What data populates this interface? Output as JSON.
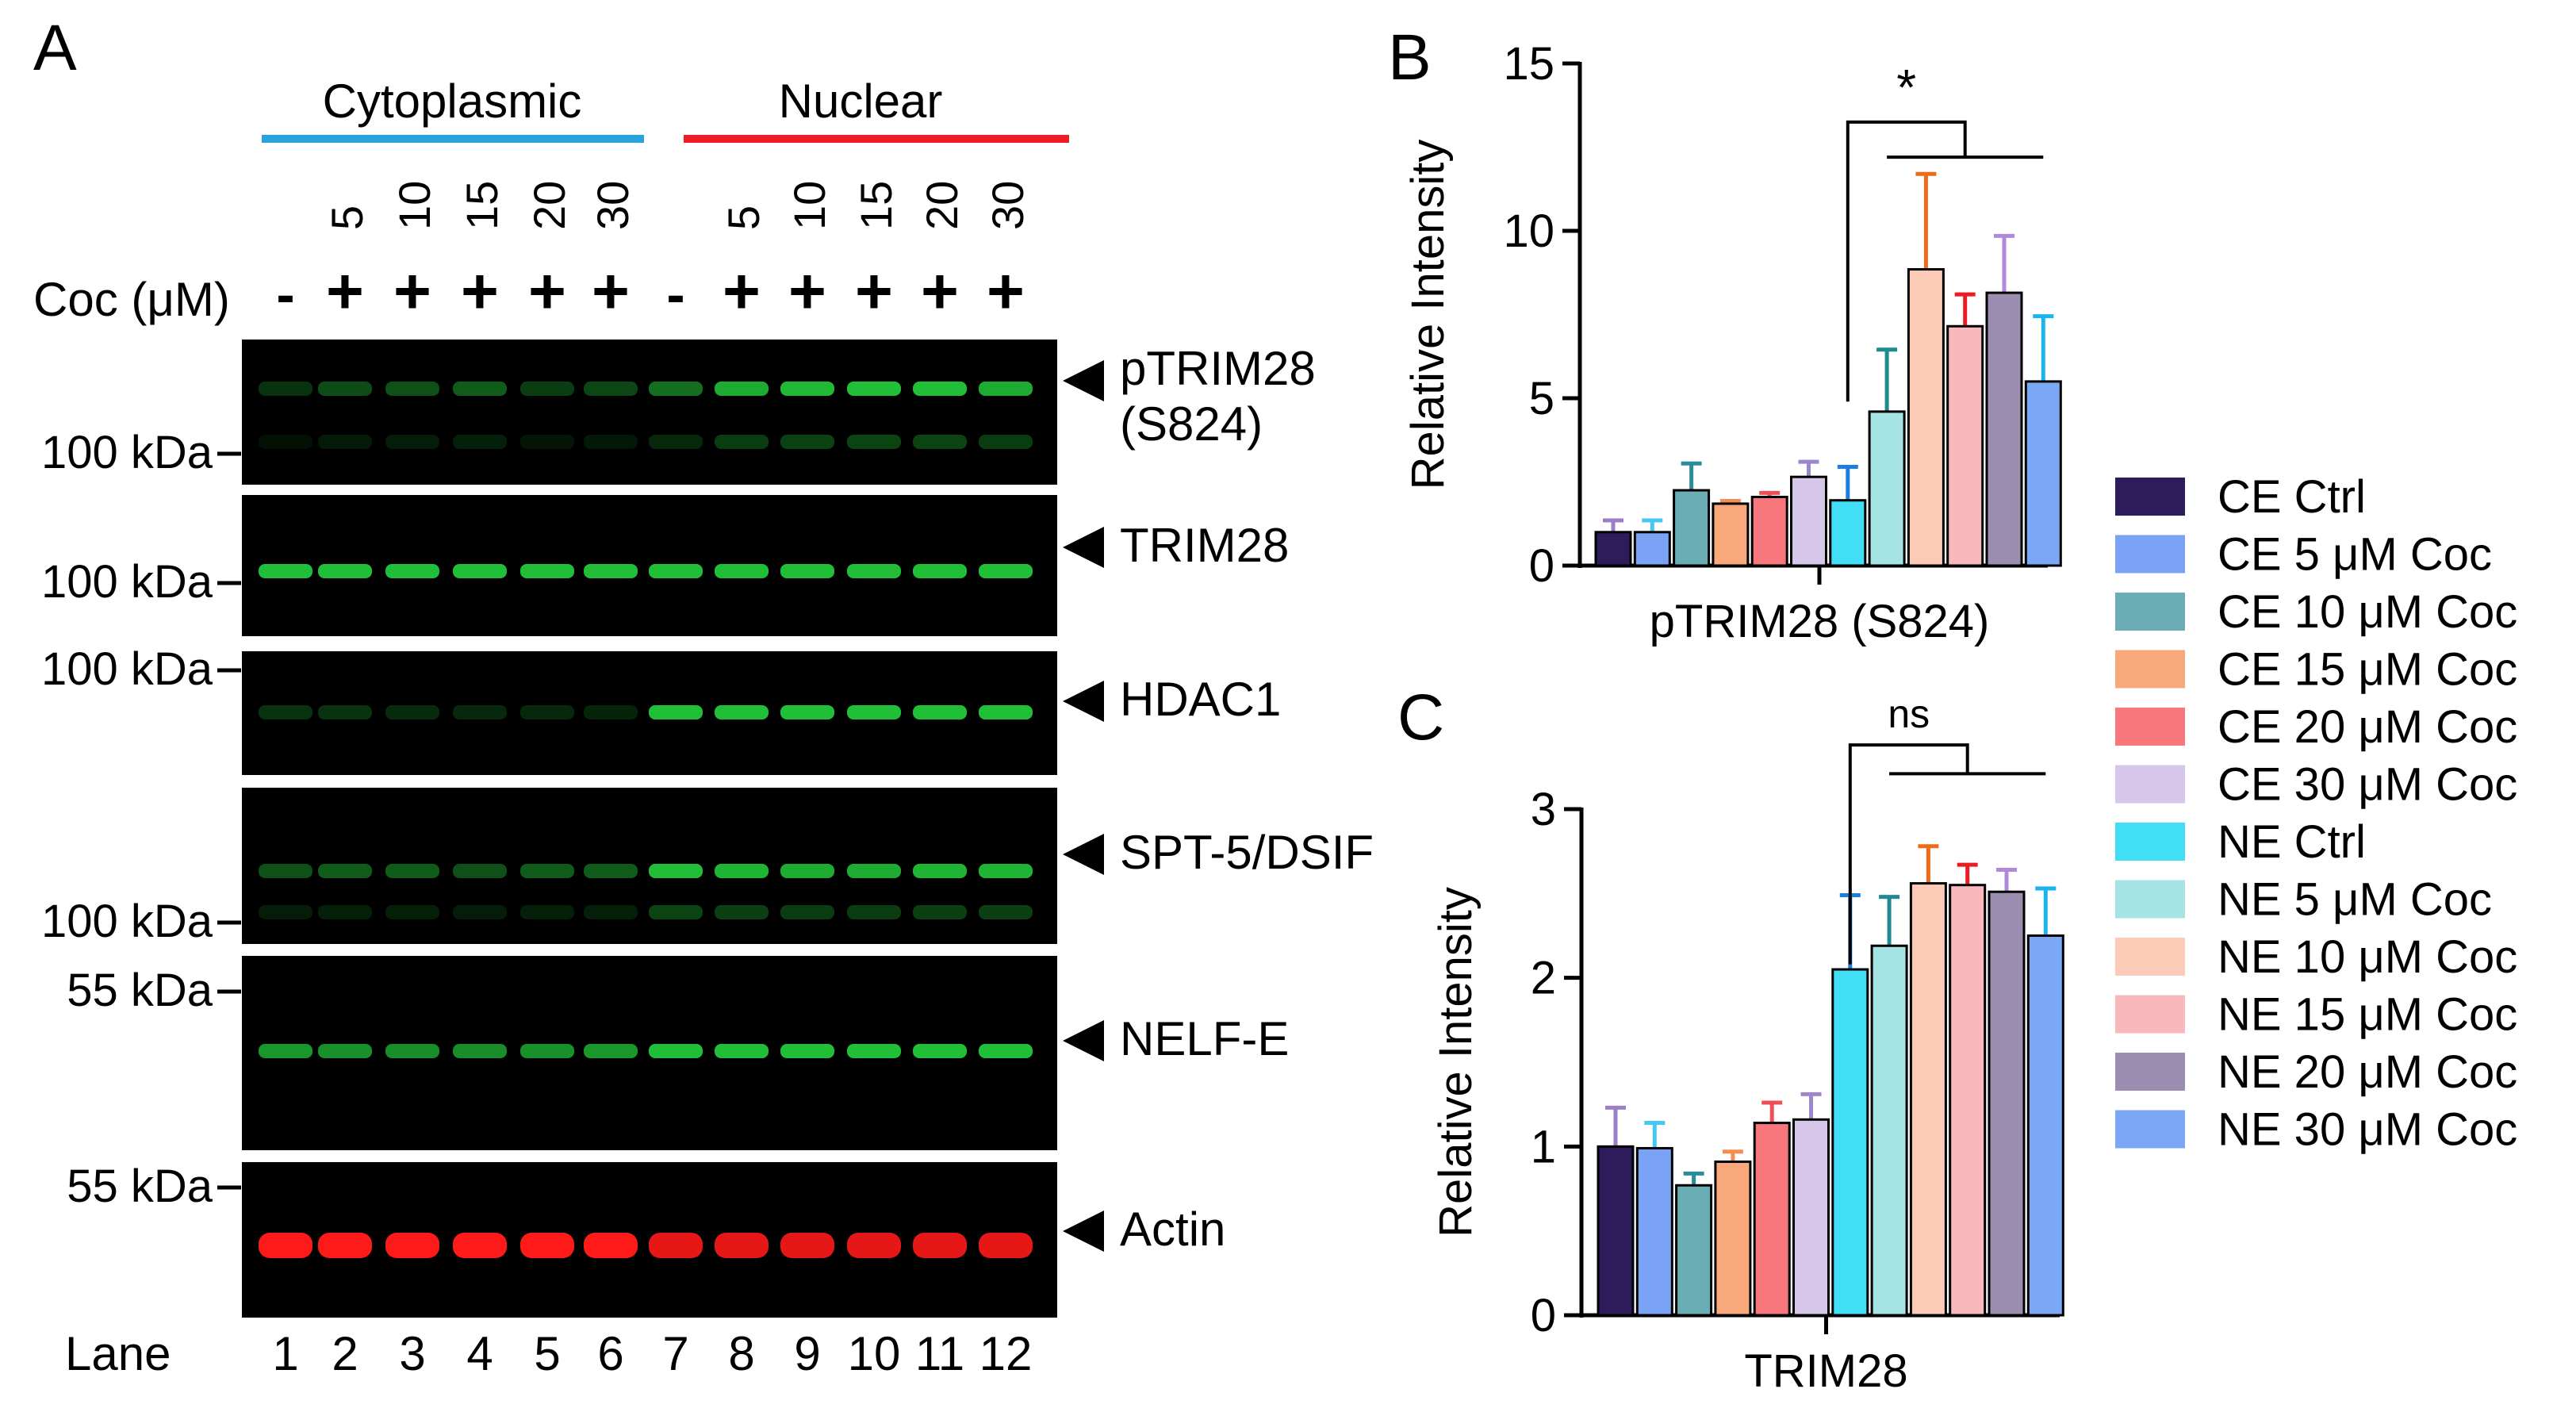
{
  "panels": {
    "A": {
      "letter": "A",
      "groups": [
        {
          "label": "Cytoplasmic",
          "color": "#2aa3dc"
        },
        {
          "label": "Nuclear",
          "color": "#ee1c24"
        }
      ],
      "concentrations": [
        "5",
        "10",
        "15",
        "20",
        "30",
        "5",
        "10",
        "15",
        "20",
        "30"
      ],
      "treatment_label": "Coc (μM)",
      "treatment_signs": [
        "-",
        "+",
        "+",
        "+",
        "+",
        "+",
        "-",
        "+",
        "+",
        "+",
        "+",
        "+"
      ],
      "blots": [
        {
          "label_lines": [
            "pTRIM28",
            "(S824)"
          ],
          "marker": "100 kDa",
          "color": "#22c93a"
        },
        {
          "label_lines": [
            "TRIM28"
          ],
          "marker": "100 kDa",
          "color": "#22c93a"
        },
        {
          "label_lines": [
            "HDAC1"
          ],
          "marker": "100 kDa",
          "color": "#22c93a"
        },
        {
          "label_lines": [
            "SPT-5/DSIF"
          ],
          "marker": "100 kDa",
          "color": "#22c93a"
        },
        {
          "label_lines": [
            "NELF-E"
          ],
          "marker": "55 kDa",
          "color": "#22c93a"
        },
        {
          "label_lines": [
            "Actin"
          ],
          "marker": "55 kDa",
          "color": "#ff1a1a"
        }
      ],
      "lane_label": "Lane",
      "lanes": [
        "1",
        "2",
        "3",
        "4",
        "5",
        "6",
        "7",
        "8",
        "9",
        "10",
        "11",
        "12"
      ],
      "band_intensity": [
        [
          0.25,
          0.38,
          0.4,
          0.45,
          0.3,
          0.35,
          0.55,
          0.85,
          0.92,
          0.95,
          0.95,
          0.85
        ],
        [
          0.95,
          0.95,
          0.95,
          0.95,
          0.95,
          0.95,
          0.95,
          0.95,
          0.95,
          0.95,
          0.95,
          0.95
        ],
        [
          0.25,
          0.25,
          0.22,
          0.2,
          0.2,
          0.18,
          0.95,
          0.95,
          0.95,
          0.95,
          0.95,
          0.95
        ],
        [
          0.4,
          0.45,
          0.45,
          0.4,
          0.45,
          0.45,
          0.95,
          0.9,
          0.85,
          0.85,
          0.9,
          0.9
        ],
        [
          0.75,
          0.72,
          0.7,
          0.7,
          0.72,
          0.75,
          0.95,
          0.95,
          0.95,
          0.95,
          0.95,
          0.95
        ],
        [
          1.0,
          1.0,
          1.0,
          1.0,
          1.0,
          1.0,
          0.9,
          0.9,
          0.9,
          0.9,
          0.9,
          0.9
        ]
      ]
    },
    "B": {
      "letter": "B"
    },
    "C": {
      "letter": "C"
    }
  },
  "legend": [
    {
      "label": "CE Ctrl",
      "color": "#2d1b5c"
    },
    {
      "label": "CE 5 μM Coc",
      "color": "#7aa3f5"
    },
    {
      "label": "CE 10 μM Coc",
      "color": "#6aadb5"
    },
    {
      "label": "CE 15 μM Coc",
      "color": "#f9a87c"
    },
    {
      "label": "CE 20 μM Coc",
      "color": "#f7777d"
    },
    {
      "label": "CE 30 μM Coc",
      "color": "#d5c6ea"
    },
    {
      "label": "NE Ctrl",
      "color": "#42def5"
    },
    {
      "label": "NE 5 μM Coc",
      "color": "#a6e3e4"
    },
    {
      "label": "NE 10 μM Coc",
      "color": "#fbcbb7"
    },
    {
      "label": "NE 15 μM Coc",
      "color": "#f9b8bc"
    },
    {
      "label": "NE 20 μM Coc",
      "color": "#9a8db0"
    },
    {
      "label": "NE 30 μM Coc",
      "color": "#7ba8f6"
    }
  ],
  "error_colors": [
    "#9b7ec7",
    "#46c8f2",
    "#2a8c9b",
    "#f58d52",
    "#ee4f56",
    "#9e86cc",
    "#1c7fe0",
    "#1f8a8f",
    "#ef6a1a",
    "#ec1c24",
    "#b08ad8",
    "#1ab4ef"
  ],
  "chart_data": [
    {
      "type": "bar",
      "panel": "B",
      "title": "",
      "xlabel": "pTRIM28 (S824)",
      "ylabel": "Relative Intensity",
      "ylim": [
        0,
        15
      ],
      "yticks": [
        0,
        5,
        10,
        15
      ],
      "categories": [
        "CE Ctrl",
        "CE 5 μM Coc",
        "CE 10 μM Coc",
        "CE 15 μM Coc",
        "CE 20 μM Coc",
        "CE 30 μM Coc",
        "NE Ctrl",
        "NE 5 μM Coc",
        "NE 10 μM Coc",
        "NE 15 μM Coc",
        "NE 20 μM Coc",
        "NE 30 μM Coc"
      ],
      "values": [
        1.0,
        1.0,
        2.25,
        1.85,
        2.05,
        2.65,
        1.95,
        4.6,
        8.85,
        7.15,
        8.15,
        5.5
      ],
      "errors": [
        0.35,
        0.35,
        0.8,
        0.08,
        0.12,
        0.45,
        1.0,
        1.85,
        2.85,
        0.95,
        1.7,
        1.95
      ],
      "significance": {
        "text": "*",
        "bracket_left_value": 4.9,
        "bracket_top_value": 13.25,
        "bracket_right_value": 12.2
      }
    },
    {
      "type": "bar",
      "panel": "C",
      "title": "",
      "xlabel": "TRIM28",
      "ylabel": "Relative Intensity",
      "ylim": [
        0,
        3
      ],
      "yticks": [
        0,
        1,
        2,
        3
      ],
      "categories": [
        "CE Ctrl",
        "CE 5 μM Coc",
        "CE 10 μM Coc",
        "CE 15 μM Coc",
        "CE 20 μM Coc",
        "CE 30 μM Coc",
        "NE Ctrl",
        "NE 5 μM Coc",
        "NE 10 μM Coc",
        "NE 15 μM Coc",
        "NE 20 μM Coc",
        "NE 30 μM Coc"
      ],
      "values": [
        1.0,
        0.99,
        0.77,
        0.91,
        1.14,
        1.16,
        2.05,
        2.19,
        2.56,
        2.55,
        2.51,
        2.25
      ],
      "errors": [
        0.23,
        0.15,
        0.07,
        0.06,
        0.12,
        0.15,
        0.44,
        0.29,
        0.22,
        0.12,
        0.13,
        0.28
      ],
      "significance": {
        "text": "ns",
        "bracket_left_value": 2.08,
        "bracket_top_value": 3.38,
        "bracket_right_value": 3.21
      }
    }
  ]
}
